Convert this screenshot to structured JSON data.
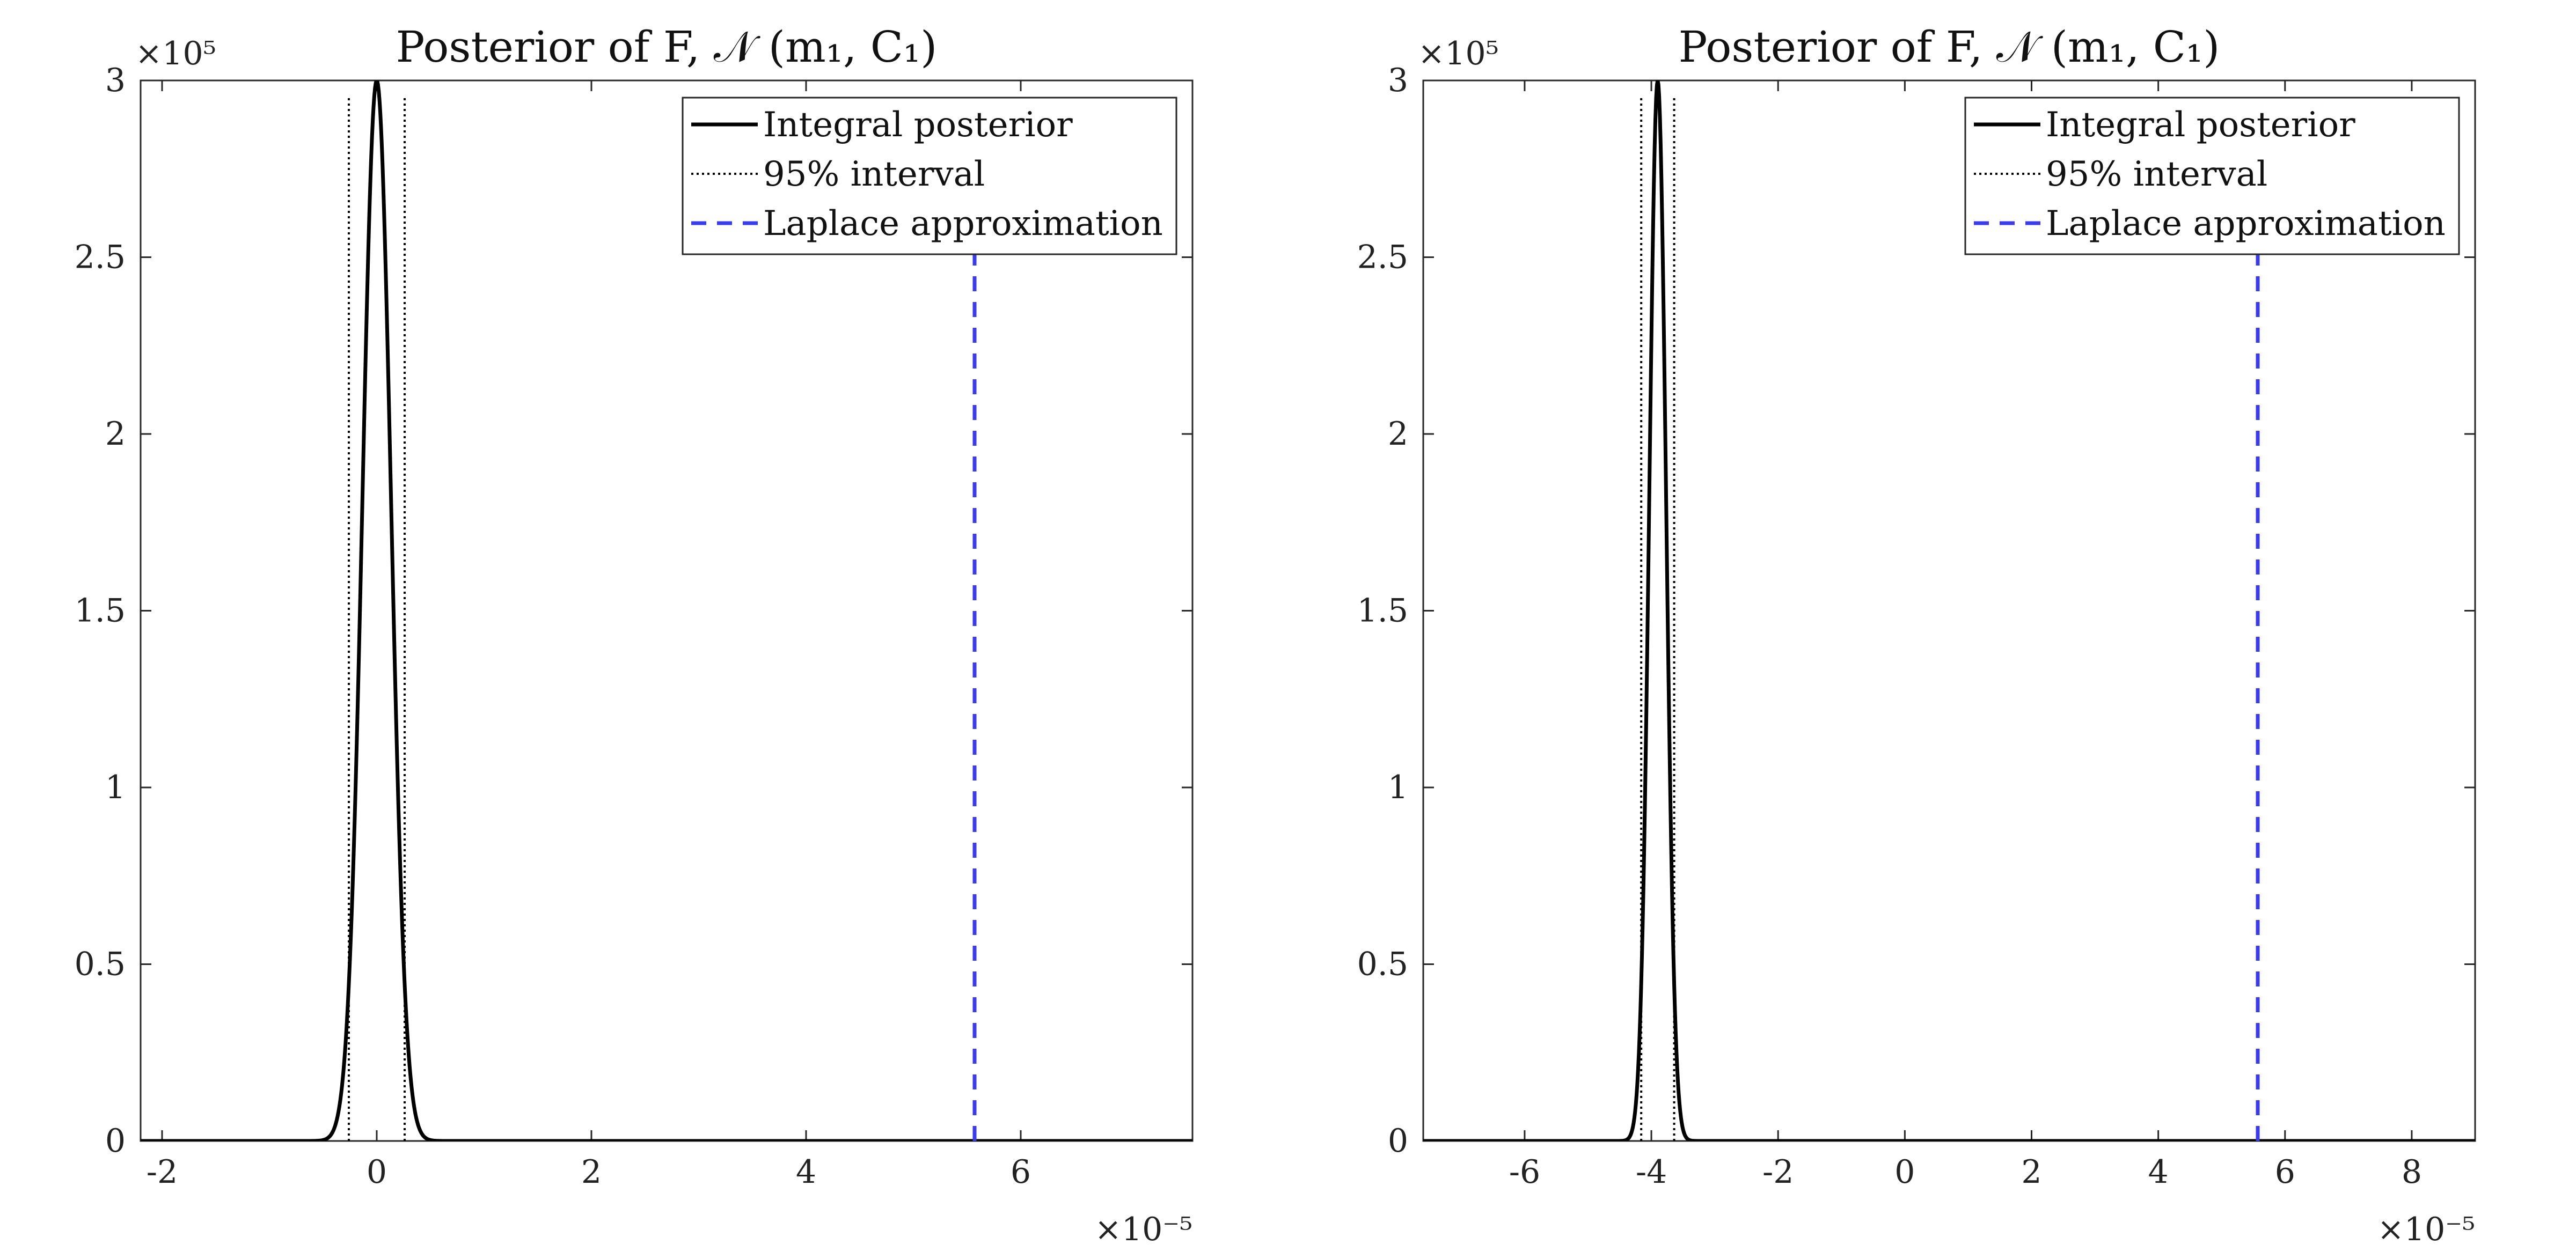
{
  "chart_data": [
    {
      "type": "line",
      "title": "Posterior of F, 𝒩 (m₁, C₁)",
      "y_exponent": "×10⁵",
      "x_exponent": "×10⁻⁵",
      "xlim": [
        -2.2,
        7.6
      ],
      "ylim": [
        0,
        3
      ],
      "xticks": [
        -2,
        0,
        2,
        4,
        6
      ],
      "xtick_labels": [
        "-2",
        "0",
        "2",
        "4",
        "6"
      ],
      "yticks": [
        0,
        0.5,
        1,
        1.5,
        2,
        2.5,
        3
      ],
      "ytick_labels": [
        "0",
        "0.5",
        "1",
        "1.5",
        "2",
        "2.5",
        "3"
      ],
      "legend_position": "top-right",
      "legend": [
        "Integral posterior",
        "95% interval",
        "Laplace approximation"
      ],
      "series": [
        {
          "name": "Integral posterior",
          "style": "solid",
          "color": "#000000",
          "curve": "gaussian",
          "mean": 0.0,
          "sd": 0.133,
          "peak": 3.0
        },
        {
          "name": "95% interval",
          "style": "dotted",
          "color": "#000000",
          "x_values": [
            -0.26,
            0.26
          ]
        },
        {
          "name": "Laplace approximation",
          "style": "dashed",
          "color": "#3a3af0",
          "x_values": [
            5.57
          ]
        }
      ]
    },
    {
      "type": "line",
      "title": "Posterior of F, 𝒩 (m₁, C₁)",
      "y_exponent": "×10⁵",
      "x_exponent": "×10⁻⁵",
      "xlim": [
        -7.6,
        9.0
      ],
      "ylim": [
        0,
        3
      ],
      "xticks": [
        -6,
        -4,
        -2,
        0,
        2,
        4,
        6,
        8
      ],
      "xtick_labels": [
        "-6",
        "-4",
        "-2",
        "0",
        "2",
        "4",
        "6",
        "8"
      ],
      "yticks": [
        0,
        0.5,
        1,
        1.5,
        2,
        2.5,
        3
      ],
      "ytick_labels": [
        "0",
        "0.5",
        "1",
        "1.5",
        "2",
        "2.5",
        "3"
      ],
      "legend_position": "top-right",
      "legend": [
        "Integral posterior",
        "95% interval",
        "Laplace approximation"
      ],
      "series": [
        {
          "name": "Integral posterior",
          "style": "solid",
          "color": "#000000",
          "curve": "gaussian",
          "mean": -3.9,
          "sd": 0.133,
          "peak": 3.0
        },
        {
          "name": "95% interval",
          "style": "dotted",
          "color": "#000000",
          "x_values": [
            -4.16,
            -3.64
          ]
        },
        {
          "name": "Laplace approximation",
          "style": "dashed",
          "color": "#3a3af0",
          "x_values": [
            5.57
          ]
        }
      ]
    }
  ]
}
